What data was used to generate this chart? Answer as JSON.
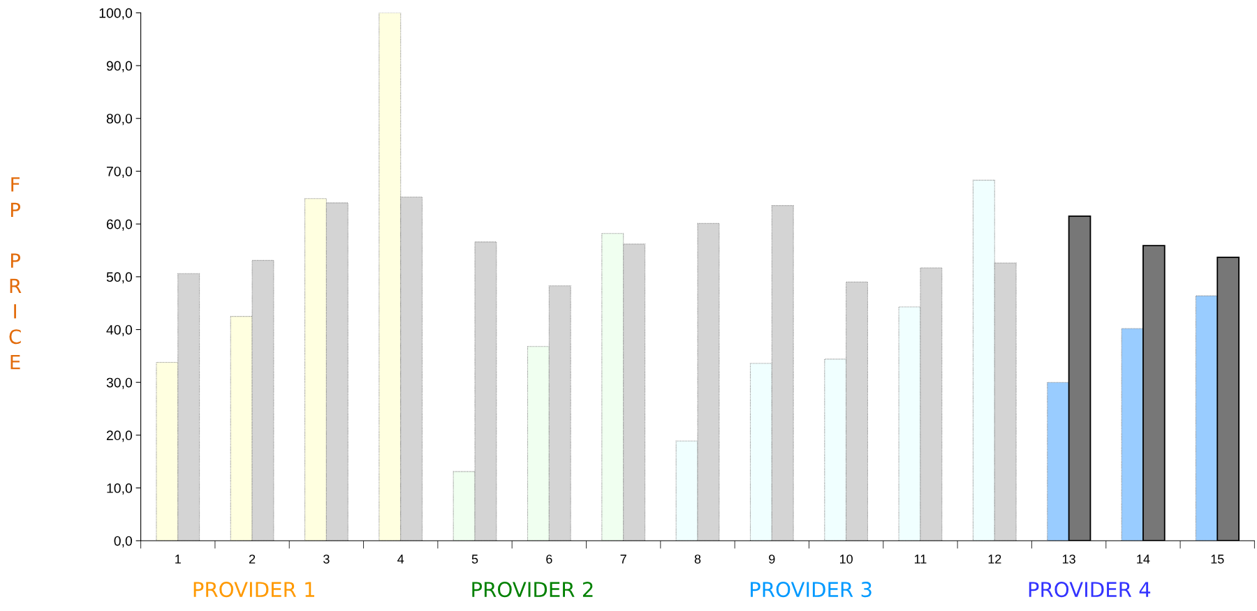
{
  "chart_data": {
    "type": "bar",
    "ylabel": "FP PRICE",
    "categories": [
      "1",
      "2",
      "3",
      "4",
      "5",
      "6",
      "7",
      "8",
      "9",
      "10",
      "11",
      "12",
      "13",
      "14",
      "15"
    ],
    "series": [
      {
        "colors": [
          "#ffffe0",
          "#ffffe0",
          "#ffffe0",
          "#ffffe0",
          "#f0fff0",
          "#f0fff0",
          "#f0fff0",
          "#f0ffff",
          "#f0ffff",
          "#f0ffff",
          "#f0ffff",
          "#f0ffff",
          "#99ccff",
          "#99ccff",
          "#99ccff"
        ],
        "values": [
          33.8,
          42.5,
          64.8,
          100.0,
          13.1,
          36.8,
          58.2,
          18.9,
          33.6,
          34.4,
          44.3,
          68.3,
          30.0,
          40.2,
          46.4
        ]
      },
      {
        "colors": [
          "#d4d4d4",
          "#d4d4d4",
          "#d4d4d4",
          "#d4d4d4",
          "#d4d4d4",
          "#d4d4d4",
          "#d4d4d4",
          "#d4d4d4",
          "#d4d4d4",
          "#d4d4d4",
          "#d4d4d4",
          "#d4d4d4",
          "#777777",
          "#777777",
          "#777777"
        ],
        "values": [
          50.6,
          53.1,
          64.0,
          65.1,
          56.6,
          48.3,
          56.2,
          60.1,
          63.5,
          49.0,
          51.7,
          52.6,
          61.5,
          55.9,
          53.7
        ]
      }
    ],
    "ylim": [
      0,
      100
    ],
    "yticks": [
      {
        "value": 0,
        "label": "0,0"
      },
      {
        "value": 10,
        "label": "10,0"
      },
      {
        "value": 20,
        "label": "20,0"
      },
      {
        "value": 30,
        "label": "30,0"
      },
      {
        "value": 40,
        "label": "40,0"
      },
      {
        "value": 50,
        "label": "50,0"
      },
      {
        "value": 60,
        "label": "60,0"
      },
      {
        "value": 70,
        "label": "70,0"
      },
      {
        "value": 80,
        "label": "80,0"
      },
      {
        "value": 90,
        "label": "90,0"
      },
      {
        "value": 100,
        "label": "100,0"
      }
    ],
    "grid": false,
    "annotations": [
      "PROVIDER 1",
      "PROVIDER 2",
      "PROVIDER 3",
      "PROVIDER 4"
    ]
  }
}
